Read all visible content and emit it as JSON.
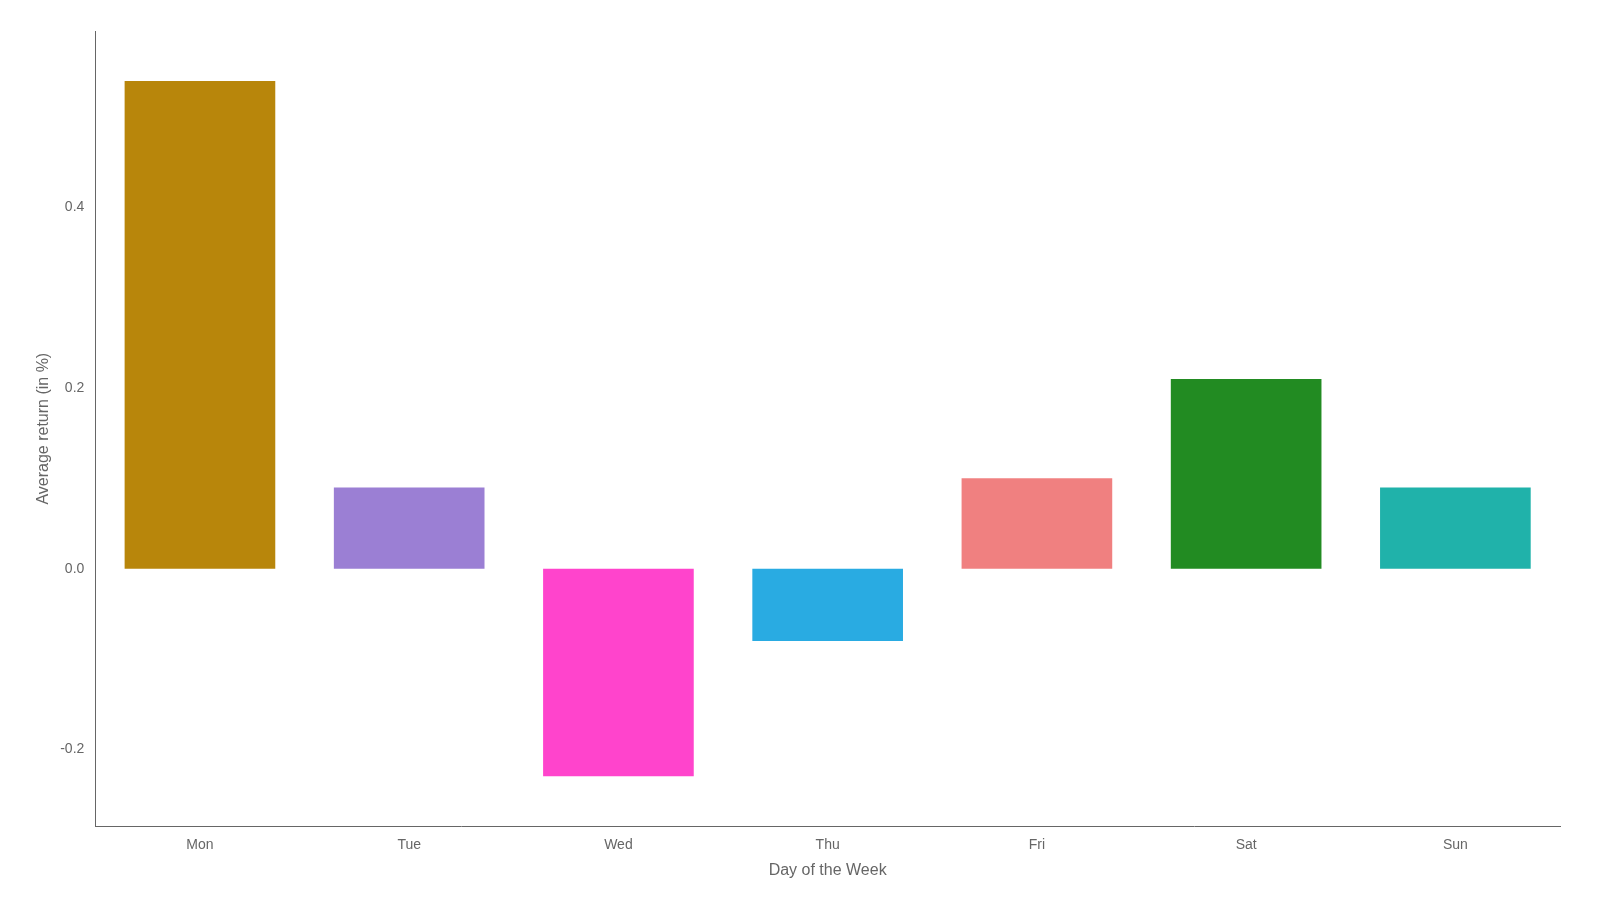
{
  "chart_data": {
    "type": "bar",
    "categories": [
      "Mon",
      "Tue",
      "Wed",
      "Thu",
      "Fri",
      "Sat",
      "Sun"
    ],
    "values": [
      0.54,
      0.09,
      -0.23,
      -0.08,
      0.1,
      0.21,
      0.09
    ],
    "colors": [
      "#B8860B",
      "#9B7FD4",
      "#FF44CC",
      "#29ABE2",
      "#F08080",
      "#228B22",
      "#20B2AA"
    ],
    "xlabel": "Day of the Week",
    "ylabel": "Average return (in %)",
    "ylim": [
      -0.285,
      0.595
    ],
    "yticks": [
      -0.2,
      {
        "value": 0,
        "label": "0.0"
      },
      0.2,
      0.4
    ],
    "grid": false
  }
}
